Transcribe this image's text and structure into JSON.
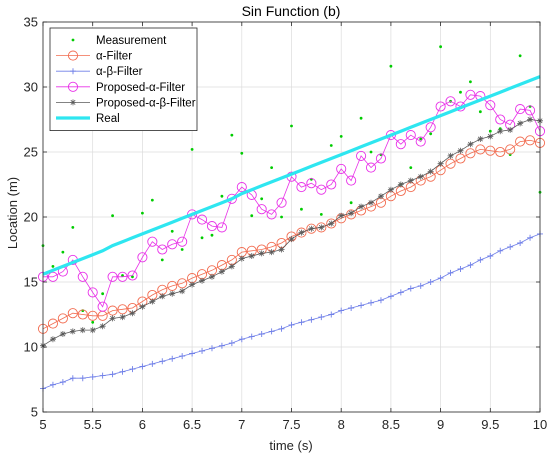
{
  "chart_data": {
    "type": "line",
    "title": "Sin Function (b)",
    "xlabel": "time (s)",
    "ylabel": "Location (m)",
    "xlim": [
      5,
      10
    ],
    "ylim": [
      5,
      35
    ],
    "xticks": [
      5,
      5.5,
      6,
      6.5,
      7,
      7.5,
      8,
      8.5,
      9,
      9.5,
      10
    ],
    "xtick_labels": [
      "5",
      "5.5",
      "6",
      "6.5",
      "7",
      "7.5",
      "8",
      "8.5",
      "9",
      "9.5",
      "10"
    ],
    "yticks": [
      5,
      10,
      15,
      20,
      25,
      30,
      35
    ],
    "ytick_labels": [
      "5",
      "10",
      "15",
      "20",
      "25",
      "30",
      "35"
    ],
    "grid": true,
    "legend_position": "top-left",
    "x": [
      5.0,
      5.1,
      5.2,
      5.3,
      5.4,
      5.5,
      5.6,
      5.7,
      5.8,
      5.9,
      6.0,
      6.1,
      6.2,
      6.3,
      6.4,
      6.5,
      6.6,
      6.7,
      6.8,
      6.9,
      7.0,
      7.1,
      7.2,
      7.3,
      7.4,
      7.5,
      7.6,
      7.7,
      7.8,
      7.9,
      8.0,
      8.1,
      8.2,
      8.3,
      8.4,
      8.5,
      8.6,
      8.7,
      8.8,
      8.9,
      9.0,
      9.1,
      9.2,
      9.3,
      9.4,
      9.5,
      9.6,
      9.7,
      9.8,
      9.9,
      10.0
    ],
    "series": [
      {
        "name": "Measurement",
        "color": "#00cc00",
        "marker": "dot",
        "line": false,
        "values": [
          17.8,
          16.2,
          17.3,
          19.2,
          12.8,
          11.9,
          14.1,
          20.1,
          15.5,
          15.4,
          20.3,
          21.3,
          16.7,
          18.9,
          17.5,
          25.2,
          18.4,
          18.6,
          21.6,
          26.3,
          24.9,
          20.1,
          21.4,
          23.8,
          20.0,
          27.0,
          20.6,
          22.9,
          20.2,
          25.5,
          26.2,
          21.1,
          27.6,
          25.0,
          24.8,
          31.6,
          22.5,
          23.8,
          26.0,
          26.4,
          33.1,
          28.9,
          29.6,
          30.4,
          28.1,
          26.6,
          26.8,
          24.8,
          32.4,
          28.5,
          21.9
        ]
      },
      {
        "name": "α-Filter",
        "color": "#f26b4f",
        "marker": "circle",
        "line": true,
        "values": [
          11.4,
          11.8,
          12.2,
          12.6,
          12.5,
          12.4,
          12.4,
          12.8,
          12.9,
          13.0,
          13.5,
          14.0,
          14.4,
          14.7,
          14.9,
          15.3,
          15.6,
          15.9,
          16.3,
          16.7,
          17.3,
          17.4,
          17.5,
          17.7,
          18.0,
          18.5,
          18.8,
          19.1,
          19.2,
          19.5,
          19.9,
          20.2,
          20.5,
          20.8,
          21.1,
          21.6,
          22.0,
          22.3,
          22.8,
          23.1,
          23.6,
          24.1,
          24.5,
          24.9,
          25.2,
          25.1,
          25.0,
          25.2,
          25.8,
          25.9,
          25.7
        ]
      },
      {
        "name": "α-β-Filter",
        "color": "#6f7fe8",
        "marker": "plus",
        "line": true,
        "values": [
          6.8,
          7.1,
          7.3,
          7.6,
          7.6,
          7.7,
          7.8,
          7.9,
          8.1,
          8.3,
          8.5,
          8.7,
          8.9,
          9.1,
          9.3,
          9.5,
          9.7,
          9.9,
          10.1,
          10.3,
          10.6,
          10.8,
          11.0,
          11.2,
          11.4,
          11.7,
          11.9,
          12.1,
          12.3,
          12.5,
          12.8,
          13.0,
          13.2,
          13.4,
          13.6,
          13.9,
          14.2,
          14.5,
          14.7,
          15.0,
          15.3,
          15.7,
          16.0,
          16.3,
          16.7,
          17.0,
          17.4,
          17.7,
          18.0,
          18.4,
          18.7
        ]
      },
      {
        "name": "Proposed-α-Filter",
        "color": "#e830e8",
        "marker": "circle",
        "line": true,
        "values": [
          15.4,
          15.4,
          15.8,
          16.7,
          15.4,
          14.2,
          13.1,
          15.4,
          15.4,
          15.5,
          16.9,
          18.1,
          17.5,
          17.9,
          18.1,
          20.2,
          19.8,
          19.3,
          19.2,
          21.4,
          22.3,
          21.7,
          20.6,
          20.2,
          21.1,
          23.1,
          22.3,
          22.6,
          22.1,
          22.5,
          23.7,
          22.8,
          24.7,
          23.8,
          24.5,
          26.3,
          25.6,
          26.3,
          25.8,
          26.9,
          28.5,
          28.9,
          28.5,
          29.4,
          29.3,
          28.6,
          27.5,
          27.1,
          28.3,
          28.2,
          26.6
        ]
      },
      {
        "name": "Proposed-α-β-Filter",
        "color": "#5a5a5a",
        "marker": "star",
        "line": true,
        "values": [
          10.1,
          10.6,
          11.0,
          11.2,
          11.3,
          11.3,
          11.6,
          12.2,
          12.3,
          12.6,
          13.1,
          13.5,
          13.9,
          14.1,
          14.3,
          14.8,
          15.1,
          15.4,
          15.8,
          16.2,
          16.8,
          17.0,
          17.2,
          17.3,
          17.5,
          18.3,
          18.8,
          19.1,
          19.2,
          19.5,
          20.1,
          20.3,
          20.8,
          21.1,
          21.6,
          22.1,
          22.5,
          22.8,
          23.1,
          23.5,
          24.1,
          24.7,
          25.1,
          25.6,
          26.0,
          26.2,
          26.6,
          26.7,
          27.2,
          27.5,
          27.4
        ]
      },
      {
        "name": "Real",
        "color": "#2ee6f0",
        "marker": "none",
        "line": true,
        "thick": true,
        "values": [
          15.6,
          15.9,
          16.2,
          16.5,
          16.8,
          17.1,
          17.4,
          17.8,
          18.1,
          18.4,
          18.7,
          19.0,
          19.3,
          19.6,
          19.9,
          20.2,
          20.5,
          20.8,
          21.1,
          21.4,
          21.8,
          22.1,
          22.4,
          22.7,
          23.0,
          23.3,
          23.6,
          23.9,
          24.2,
          24.5,
          24.8,
          25.1,
          25.4,
          25.7,
          26.0,
          26.3,
          26.6,
          26.9,
          27.2,
          27.5,
          27.8,
          28.1,
          28.4,
          28.7,
          29.0,
          29.3,
          29.6,
          29.9,
          30.2,
          30.5,
          30.8
        ]
      }
    ]
  }
}
